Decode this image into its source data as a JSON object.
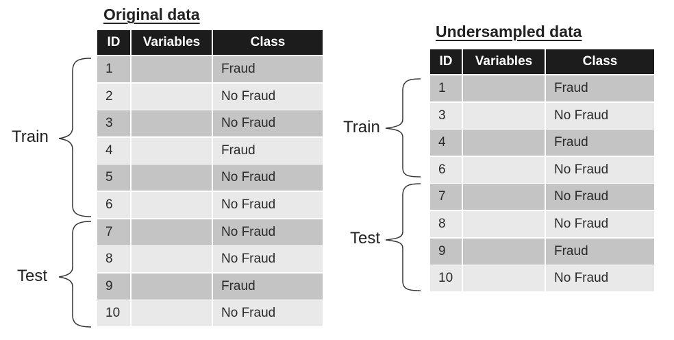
{
  "original": {
    "title": "Original data",
    "headers": {
      "id": "ID",
      "variables": "Variables",
      "class": "Class"
    },
    "rows": [
      {
        "id": "1",
        "variables": "",
        "class": "Fraud"
      },
      {
        "id": "2",
        "variables": "",
        "class": "No Fraud"
      },
      {
        "id": "3",
        "variables": "",
        "class": "No Fraud"
      },
      {
        "id": "4",
        "variables": "",
        "class": "Fraud"
      },
      {
        "id": "5",
        "variables": "",
        "class": "No Fraud"
      },
      {
        "id": "6",
        "variables": "",
        "class": "No Fraud"
      },
      {
        "id": "7",
        "variables": "",
        "class": "No Fraud"
      },
      {
        "id": "8",
        "variables": "",
        "class": "No Fraud"
      },
      {
        "id": "9",
        "variables": "",
        "class": "Fraud"
      },
      {
        "id": "10",
        "variables": "",
        "class": "No Fraud"
      }
    ],
    "train_label": "Train",
    "test_label": "Test"
  },
  "undersampled": {
    "title": "Undersampled data",
    "headers": {
      "id": "ID",
      "variables": "Variables",
      "class": "Class"
    },
    "rows": [
      {
        "id": "1",
        "variables": "",
        "class": "Fraud"
      },
      {
        "id": "3",
        "variables": "",
        "class": "No Fraud"
      },
      {
        "id": "4",
        "variables": "",
        "class": "Fraud"
      },
      {
        "id": "6",
        "variables": "",
        "class": "No Fraud"
      },
      {
        "id": "7",
        "variables": "",
        "class": "No Fraud"
      },
      {
        "id": "8",
        "variables": "",
        "class": "No Fraud"
      },
      {
        "id": "9",
        "variables": "",
        "class": "Fraud"
      },
      {
        "id": "10",
        "variables": "",
        "class": "No Fraud"
      }
    ],
    "train_label": "Train",
    "test_label": "Test"
  },
  "colors": {
    "header_bg": "#1c1c1c",
    "row_dark": "#c4c4c4",
    "row_light": "#e9e9e9"
  }
}
